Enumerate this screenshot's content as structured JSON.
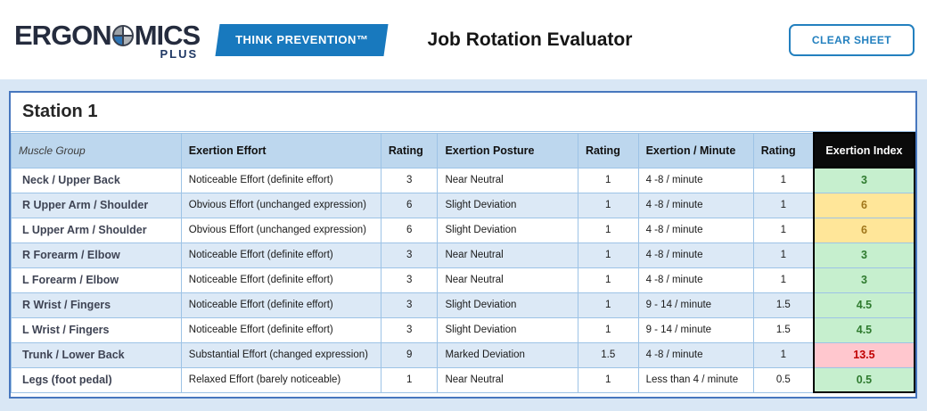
{
  "header": {
    "logo": {
      "part1": "ERGON",
      "part2": "MICS",
      "sub": "PLUS"
    },
    "badge": "THINK PREVENTION™",
    "title": "Job Rotation Evaluator",
    "clear_button": "CLEAR SHEET"
  },
  "station": {
    "title": "Station 1"
  },
  "table": {
    "columns": [
      "Muscle Group",
      "Exertion Effort",
      "Rating",
      "Exertion Posture",
      "Rating",
      "Exertion / Minute",
      "Rating",
      "Exertion Index"
    ],
    "rows": [
      {
        "muscle": "Neck / Upper Back",
        "effort": "Noticeable Effort (definite effort)",
        "effort_rating": "3",
        "posture": "Near Neutral",
        "posture_rating": "1",
        "minute": "4 -8 / minute",
        "minute_rating": "1",
        "index": "3",
        "level": "good"
      },
      {
        "muscle": "R Upper Arm / Shoulder",
        "effort": "Obvious Effort (unchanged expression)",
        "effort_rating": "6",
        "posture": "Slight Deviation",
        "posture_rating": "1",
        "minute": "4 -8 / minute",
        "minute_rating": "1",
        "index": "6",
        "level": "warn"
      },
      {
        "muscle": "L Upper Arm / Shoulder",
        "effort": "Obvious Effort (unchanged expression)",
        "effort_rating": "6",
        "posture": "Slight Deviation",
        "posture_rating": "1",
        "minute": "4 -8 / minute",
        "minute_rating": "1",
        "index": "6",
        "level": "warn"
      },
      {
        "muscle": "R Forearm / Elbow",
        "effort": "Noticeable Effort (definite effort)",
        "effort_rating": "3",
        "posture": "Near Neutral",
        "posture_rating": "1",
        "minute": "4 -8 / minute",
        "minute_rating": "1",
        "index": "3",
        "level": "good"
      },
      {
        "muscle": "L Forearm / Elbow",
        "effort": "Noticeable Effort (definite effort)",
        "effort_rating": "3",
        "posture": "Near Neutral",
        "posture_rating": "1",
        "minute": "4 -8 / minute",
        "minute_rating": "1",
        "index": "3",
        "level": "good"
      },
      {
        "muscle": "R Wrist / Fingers",
        "effort": "Noticeable Effort (definite effort)",
        "effort_rating": "3",
        "posture": "Slight Deviation",
        "posture_rating": "1",
        "minute": "9 - 14 / minute",
        "minute_rating": "1.5",
        "index": "4.5",
        "level": "good"
      },
      {
        "muscle": "L Wrist / Fingers",
        "effort": "Noticeable Effort (definite effort)",
        "effort_rating": "3",
        "posture": "Slight Deviation",
        "posture_rating": "1",
        "minute": "9 - 14 / minute",
        "minute_rating": "1.5",
        "index": "4.5",
        "level": "good"
      },
      {
        "muscle": "Trunk / Lower Back",
        "effort": "Substantial Effort (changed expression)",
        "effort_rating": "9",
        "posture": "Marked Deviation",
        "posture_rating": "1.5",
        "minute": "4 -8 / minute",
        "minute_rating": "1",
        "index": "13.5",
        "level": "bad"
      },
      {
        "muscle": "Legs (foot pedal)",
        "effort": "Relaxed Effort (barely noticeable)",
        "effort_rating": "1",
        "posture": "Near Neutral",
        "posture_rating": "1",
        "minute": "Less than 4 / minute",
        "minute_rating": "0.5",
        "index": "0.5",
        "level": "good"
      }
    ]
  },
  "colors": {
    "brand_badge_blue": "#1879BE",
    "button_blue": "#2380BF",
    "panel_border_blue": "#4777BE",
    "page_bg_blue": "#D9E7F5",
    "table_header_bg": "#BDD7EE",
    "alt_row_bg": "#DCE9F6",
    "cell_border": "#9DC3E6",
    "index_header_bg": "#0A0A0A",
    "index_good_bg": "#C6EFCE",
    "index_warn_bg": "#FFE699",
    "index_bad_bg": "#FFC7CE",
    "index_bad_text": "#C00000"
  }
}
